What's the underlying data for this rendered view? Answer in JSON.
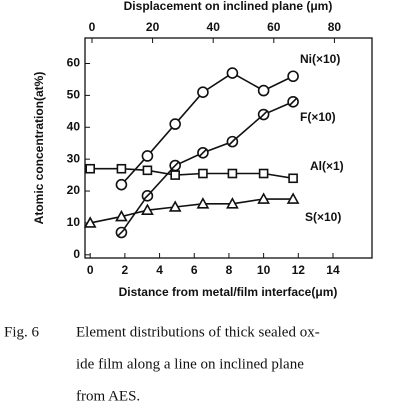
{
  "chart_data": {
    "type": "line",
    "xlabel": "Distance from metal/film interface(μm)",
    "x2label": "Displacement on inclined plane (μm)",
    "ylabel": "Atomic concentration(at%)",
    "xlim": [
      -0.3,
      16.25
    ],
    "xticks": [
      0,
      2,
      4,
      6,
      8,
      10,
      12,
      14
    ],
    "x2lim": [
      -2.3,
      92.4
    ],
    "x2ticks": [
      0,
      20,
      40,
      60,
      80
    ],
    "ylim": [
      -1,
      68
    ],
    "yticks": [
      0,
      10,
      20,
      30,
      40,
      50,
      60
    ],
    "series": [
      {
        "name": "Ni(×10)",
        "color": "#111111",
        "marker": "circle",
        "x": [
          1.8,
          3.3,
          4.9,
          6.5,
          8.2,
          10,
          11.7
        ],
        "values": [
          22,
          31,
          41,
          51,
          57,
          51.5,
          56
        ]
      },
      {
        "name": "F(×10)",
        "color": "#111111",
        "marker": "circle-dot",
        "x": [
          1.8,
          3.3,
          4.9,
          6.5,
          8.2,
          10,
          11.7
        ],
        "values": [
          7,
          18.5,
          28,
          32,
          35.5,
          44,
          48
        ]
      },
      {
        "name": "Al(×1)",
        "color": "#111111",
        "marker": "square",
        "x": [
          0,
          1.8,
          3.3,
          4.9,
          6.5,
          8.2,
          10,
          11.7
        ],
        "values": [
          27,
          27,
          26.5,
          25,
          25.5,
          25.5,
          25.5,
          24
        ]
      },
      {
        "name": "S(×10)",
        "color": "#111111",
        "marker": "triangle",
        "x": [
          0,
          1.8,
          3.3,
          4.9,
          6.5,
          8.2,
          10,
          11.7
        ],
        "values": [
          10,
          12,
          14,
          15,
          16,
          16,
          17.5,
          17.5
        ]
      }
    ]
  },
  "caption": {
    "label": "Fig. 6",
    "lines": [
      "Element distributions of thick sealed ox-",
      "ide film along a line on inclined plane",
      "from AES."
    ]
  }
}
